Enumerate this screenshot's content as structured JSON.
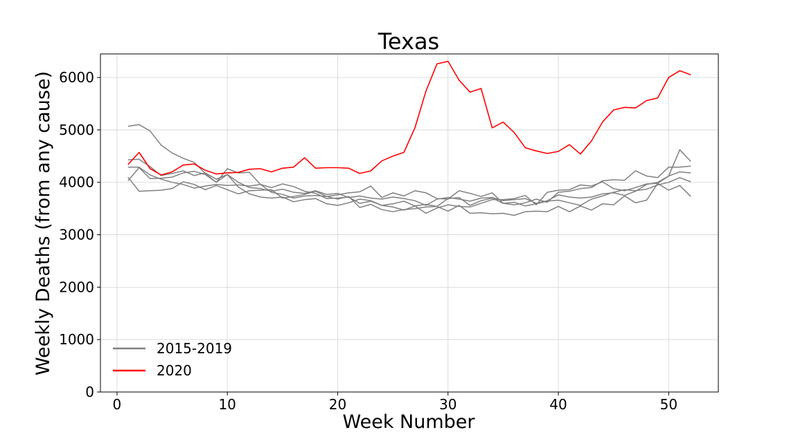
{
  "chart_data": {
    "type": "line",
    "title": "Texas",
    "xlabel": "Week Number",
    "ylabel": "Weekly Deaths (from any cause)",
    "xlim": [
      -1.5,
      54.5
    ],
    "ylim": [
      0,
      6450
    ],
    "xticks": [
      0,
      10,
      20,
      30,
      40,
      50
    ],
    "yticks": [
      0,
      1000,
      2000,
      3000,
      4000,
      5000,
      6000
    ],
    "grid": true,
    "legend_position": "lower-left",
    "legend": [
      {
        "label": "2015-2019",
        "color": "#808080"
      },
      {
        "label": "2020",
        "color": "#ff0000"
      }
    ],
    "x": [
      1,
      2,
      3,
      4,
      5,
      6,
      7,
      8,
      9,
      10,
      11,
      12,
      13,
      14,
      15,
      16,
      17,
      18,
      19,
      20,
      21,
      22,
      23,
      24,
      25,
      26,
      27,
      28,
      29,
      30,
      31,
      32,
      33,
      34,
      35,
      36,
      37,
      38,
      39,
      40,
      41,
      42,
      43,
      44,
      45,
      46,
      47,
      48,
      49,
      50,
      51,
      52
    ],
    "series": [
      {
        "group": "2015-2019",
        "color": "#808080",
        "values": [
          5070,
          5100,
          4980,
          4710,
          4560,
          4460,
          4380,
          4170,
          4000,
          4260,
          4180,
          4190,
          3960,
          3810,
          3770,
          3700,
          3740,
          3750,
          3730,
          3760,
          3800,
          3820,
          3930,
          3710,
          3800,
          3740,
          3840,
          3800,
          3690,
          3680,
          3840,
          3790,
          3730,
          3800,
          3600,
          3570,
          3610,
          3680,
          3620,
          3810,
          3830,
          3880,
          3900,
          4030,
          4050,
          4040,
          4220,
          4120,
          4090,
          4290,
          4290,
          4310
        ]
      },
      {
        "group": "2015-2019",
        "color": "#808080",
        "values": [
          4430,
          4440,
          4300,
          4130,
          4170,
          4220,
          4130,
          4180,
          4060,
          4150,
          4000,
          3900,
          3880,
          3830,
          3870,
          3810,
          3790,
          3840,
          3770,
          3790,
          3710,
          3740,
          3700,
          3680,
          3720,
          3690,
          3650,
          3560,
          3680,
          3710,
          3680,
          3640,
          3700,
          3710,
          3650,
          3670,
          3690,
          3600,
          3650,
          3760,
          3720,
          3700,
          3720,
          3780,
          3800,
          3750,
          3830,
          3960,
          4000,
          4120,
          4620,
          4400
        ]
      },
      {
        "group": "2015-2019",
        "color": "#808080",
        "values": [
          4030,
          4280,
          4070,
          4080,
          4100,
          4180,
          4210,
          4150,
          4000,
          4150,
          3910,
          3780,
          3720,
          3700,
          3720,
          3630,
          3670,
          3690,
          3590,
          3560,
          3610,
          3680,
          3650,
          3560,
          3590,
          3640,
          3550,
          3580,
          3540,
          3690,
          3710,
          3560,
          3650,
          3700,
          3600,
          3620,
          3550,
          3590,
          3640,
          3660,
          3610,
          3560,
          3680,
          3740,
          3810,
          3860,
          3840,
          3870,
          3950,
          4000,
          4090,
          4010
        ]
      },
      {
        "group": "2015-2019",
        "color": "#808080",
        "values": [
          4290,
          4290,
          4140,
          4060,
          4000,
          3960,
          3890,
          3930,
          3960,
          3940,
          3950,
          3930,
          3960,
          3900,
          3970,
          3920,
          3830,
          3790,
          3690,
          3700,
          3720,
          3600,
          3640,
          3560,
          3530,
          3470,
          3550,
          3410,
          3510,
          3570,
          3540,
          3530,
          3600,
          3670,
          3670,
          3690,
          3750,
          3570,
          3810,
          3850,
          3860,
          3950,
          3930,
          4010,
          3880,
          3840,
          3900,
          3970,
          3980,
          4120,
          4200,
          4180
        ]
      },
      {
        "group": "2015-2019",
        "color": "#808080",
        "values": [
          4100,
          3830,
          3840,
          3850,
          3880,
          4010,
          3960,
          3860,
          3940,
          3860,
          3780,
          3840,
          3850,
          3860,
          3700,
          3730,
          3770,
          3830,
          3730,
          3680,
          3730,
          3520,
          3580,
          3480,
          3440,
          3480,
          3500,
          3530,
          3540,
          3450,
          3560,
          3410,
          3420,
          3400,
          3410,
          3370,
          3440,
          3450,
          3440,
          3540,
          3440,
          3550,
          3470,
          3590,
          3570,
          3740,
          3610,
          3660,
          3980,
          3850,
          3940,
          3730
        ]
      },
      {
        "group": "2020",
        "color": "#ff0000",
        "values": [
          4340,
          4570,
          4260,
          4140,
          4200,
          4330,
          4350,
          4230,
          4160,
          4180,
          4190,
          4250,
          4260,
          4200,
          4270,
          4290,
          4470,
          4270,
          4280,
          4280,
          4270,
          4170,
          4220,
          4410,
          4500,
          4570,
          5040,
          5740,
          6260,
          6310,
          5950,
          5720,
          5790,
          5040,
          5150,
          4950,
          4660,
          4600,
          4550,
          4590,
          4720,
          4540,
          4790,
          5150,
          5380,
          5430,
          5420,
          5560,
          5610,
          6000,
          6130,
          6050
        ]
      }
    ]
  }
}
